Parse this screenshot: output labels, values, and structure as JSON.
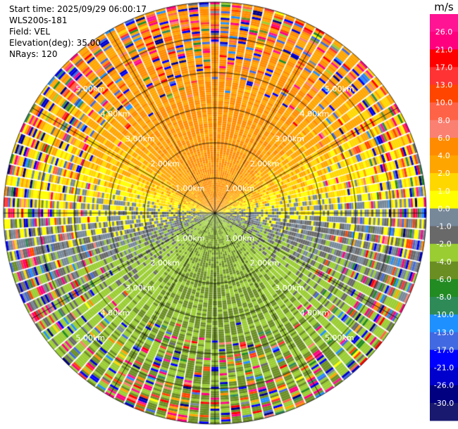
{
  "info": {
    "start_time": "Start time: 2025/09/29 06:00:17",
    "instrument": "WLS200s-181",
    "field": "Field: VEL",
    "elevation": "Elevation(deg): 35.00",
    "nrays": "NRays: 120"
  },
  "chart_data": {
    "type": "heatmap",
    "subtype": "polar-ppi",
    "field": "VEL",
    "units": "m/s",
    "elevation_deg": 35.0,
    "n_rays": 120,
    "max_range_km": 6.0,
    "range_rings_km": [
      1,
      2,
      3,
      4,
      5,
      6
    ],
    "range_ring_labels": [
      "1.00km",
      "2.00km",
      "3.00km",
      "4.00km",
      "5.00km"
    ],
    "colorbar": {
      "title": "m/s",
      "tick_labels": [
        "26.0",
        "21.0",
        "17.0",
        "13.0",
        "10.0",
        "8.0",
        "6.0",
        "4.0",
        "2.0",
        "1.0",
        "0.0",
        "-1.0",
        "-2.0",
        "-4.0",
        "-6.0",
        "-8.0",
        "-10.0",
        "-13.0",
        "-17.0",
        "-21.0",
        "-26.0",
        "-30.0"
      ],
      "colors": [
        "#ff1493",
        "#ff007f",
        "#ff0000",
        "#ff3333",
        "#ff4500",
        "#ff6347",
        "#fa8072",
        "#ff8c00",
        "#ffa500",
        "#ffd700",
        "#ffff00",
        "#778899",
        "#696969",
        "#9acd32",
        "#6b8e23",
        "#228b22",
        "#2e8b57",
        "#1e90ff",
        "#4169e1",
        "#0000ff",
        "#0000cd",
        "#000080",
        "#191970"
      ]
    },
    "pattern": "Receding (positive, yellow/orange) velocities toward the north and upper half; approaching (negative, green) velocities toward the south and lower half; noisy mixed colors in outer range gates."
  }
}
